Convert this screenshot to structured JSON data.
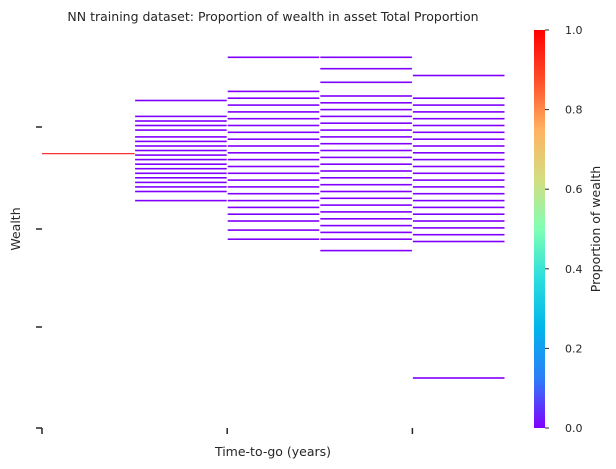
{
  "chart_data": {
    "type": "heatmap",
    "title": "NN training dataset: Proportion of wealth in asset Total Proportion",
    "xlabel": "Time-to-go (years)",
    "ylabel": "Wealth",
    "colorbar": {
      "label": "Proportion of wealth",
      "min": 0.0,
      "max": 1.0,
      "ticks": [
        "0.0",
        "0.2",
        "0.4",
        "0.6",
        "0.8",
        "1.0"
      ],
      "colors": [
        "#8000ff",
        "#2c7ef7",
        "#00b5eb",
        "#2adddd",
        "#80ffb4",
        "#d4dd80",
        "#ffb360",
        "#ff4c27",
        "#ff0000"
      ]
    },
    "x_tick_labels": [
      "",
      "",
      ""
    ],
    "y_tick_labels": [
      "",
      "",
      "",
      ""
    ],
    "grid": false,
    "columns": [
      {
        "wealth_min": 0.455,
        "wealth_max": 0.457,
        "levels": [
          {
            "wealth": 0.456,
            "value": 1.0
          }
        ]
      },
      {
        "wealth_min": 0.25,
        "wealth_max": 0.69,
        "levels": [
          {
            "wealth": 0.69,
            "value": 0.0
          },
          {
            "wealth": 0.62,
            "value": 0.0
          },
          {
            "wealth": 0.6,
            "value": 0.0
          },
          {
            "wealth": 0.58,
            "value": 0.0
          },
          {
            "wealth": 0.56,
            "value": 0.0
          },
          {
            "wealth": 0.53,
            "value": 0.0
          },
          {
            "wealth": 0.51,
            "value": 0.0
          },
          {
            "wealth": 0.49,
            "value": 0.0
          },
          {
            "wealth": 0.47,
            "value": 0.0
          },
          {
            "wealth": 0.45,
            "value": 0.0
          },
          {
            "wealth": 0.43,
            "value": 0.0
          },
          {
            "wealth": 0.41,
            "value": 0.0
          },
          {
            "wealth": 0.39,
            "value": 0.0
          },
          {
            "wealth": 0.37,
            "value": 0.0
          },
          {
            "wealth": 0.35,
            "value": 0.0
          },
          {
            "wealth": 0.33,
            "value": 0.0
          },
          {
            "wealth": 0.31,
            "value": 0.0
          },
          {
            "wealth": 0.29,
            "value": 0.0
          },
          {
            "wealth": 0.25,
            "value": 0.0
          }
        ]
      },
      {
        "wealth_min": 0.08,
        "wealth_max": 0.88,
        "levels": [
          {
            "wealth": 0.88,
            "value": 0.0
          },
          {
            "wealth": 0.73,
            "value": 0.0
          },
          {
            "wealth": 0.7,
            "value": 0.0
          },
          {
            "wealth": 0.67,
            "value": 0.0
          },
          {
            "wealth": 0.64,
            "value": 0.0
          },
          {
            "wealth": 0.61,
            "value": 0.0
          },
          {
            "wealth": 0.58,
            "value": 0.0
          },
          {
            "wealth": 0.55,
            "value": 0.0
          },
          {
            "wealth": 0.52,
            "value": 0.0
          },
          {
            "wealth": 0.49,
            "value": 0.0
          },
          {
            "wealth": 0.46,
            "value": 0.0
          },
          {
            "wealth": 0.43,
            "value": 0.0
          },
          {
            "wealth": 0.4,
            "value": 0.0
          },
          {
            "wealth": 0.37,
            "value": 0.0
          },
          {
            "wealth": 0.34,
            "value": 0.0
          },
          {
            "wealth": 0.31,
            "value": 0.0
          },
          {
            "wealth": 0.28,
            "value": 0.0
          },
          {
            "wealth": 0.25,
            "value": 0.0
          },
          {
            "wealth": 0.22,
            "value": 0.0
          },
          {
            "wealth": 0.19,
            "value": 0.0
          },
          {
            "wealth": 0.16,
            "value": 0.0
          },
          {
            "wealth": 0.12,
            "value": 0.0
          },
          {
            "wealth": 0.08,
            "value": 0.0
          }
        ]
      },
      {
        "wealth_min": 0.03,
        "wealth_max": 0.88,
        "levels": [
          {
            "wealth": 0.88,
            "value": 0.0
          },
          {
            "wealth": 0.83,
            "value": 0.0
          },
          {
            "wealth": 0.77,
            "value": 0.0
          },
          {
            "wealth": 0.71,
            "value": 0.0
          },
          {
            "wealth": 0.68,
            "value": 0.0
          },
          {
            "wealth": 0.65,
            "value": 0.0
          },
          {
            "wealth": 0.62,
            "value": 0.0
          },
          {
            "wealth": 0.59,
            "value": 0.0
          },
          {
            "wealth": 0.56,
            "value": 0.0
          },
          {
            "wealth": 0.53,
            "value": 0.0
          },
          {
            "wealth": 0.5,
            "value": 0.0
          },
          {
            "wealth": 0.47,
            "value": 0.0
          },
          {
            "wealth": 0.44,
            "value": 0.0
          },
          {
            "wealth": 0.41,
            "value": 0.0
          },
          {
            "wealth": 0.38,
            "value": 0.0
          },
          {
            "wealth": 0.35,
            "value": 0.0
          },
          {
            "wealth": 0.32,
            "value": 0.0
          },
          {
            "wealth": 0.29,
            "value": 0.0
          },
          {
            "wealth": 0.26,
            "value": 0.0
          },
          {
            "wealth": 0.23,
            "value": 0.0
          },
          {
            "wealth": 0.2,
            "value": 0.0
          },
          {
            "wealth": 0.17,
            "value": 0.0
          },
          {
            "wealth": 0.14,
            "value": 0.0
          },
          {
            "wealth": 0.11,
            "value": 0.0
          },
          {
            "wealth": 0.08,
            "value": 0.0
          },
          {
            "wealth": 0.03,
            "value": 0.0
          }
        ]
      },
      {
        "wealth_min": -0.53,
        "wealth_max": 0.8,
        "levels": [
          {
            "wealth": 0.8,
            "value": 0.0
          },
          {
            "wealth": 0.7,
            "value": 0.0
          },
          {
            "wealth": 0.67,
            "value": 0.0
          },
          {
            "wealth": 0.64,
            "value": 0.0
          },
          {
            "wealth": 0.61,
            "value": 0.0
          },
          {
            "wealth": 0.58,
            "value": 0.0
          },
          {
            "wealth": 0.55,
            "value": 0.0
          },
          {
            "wealth": 0.52,
            "value": 0.0
          },
          {
            "wealth": 0.49,
            "value": 0.0
          },
          {
            "wealth": 0.46,
            "value": 0.0
          },
          {
            "wealth": 0.43,
            "value": 0.0
          },
          {
            "wealth": 0.4,
            "value": 0.0
          },
          {
            "wealth": 0.37,
            "value": 0.0
          },
          {
            "wealth": 0.34,
            "value": 0.0
          },
          {
            "wealth": 0.31,
            "value": 0.0
          },
          {
            "wealth": 0.28,
            "value": 0.0
          },
          {
            "wealth": 0.25,
            "value": 0.0
          },
          {
            "wealth": 0.22,
            "value": 0.0
          },
          {
            "wealth": 0.19,
            "value": 0.0
          },
          {
            "wealth": 0.16,
            "value": 0.0
          },
          {
            "wealth": 0.13,
            "value": 0.0
          },
          {
            "wealth": 0.1,
            "value": 0.0
          },
          {
            "wealth": 0.07,
            "value": 0.0
          },
          {
            "wealth": -0.53,
            "value": 0.0
          }
        ]
      }
    ]
  }
}
